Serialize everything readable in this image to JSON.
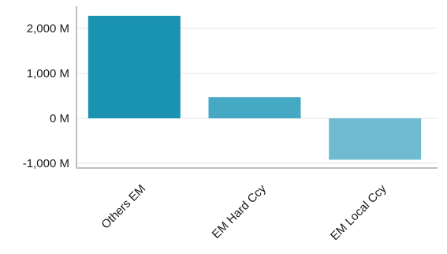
{
  "chart_data": {
    "type": "bar",
    "categories": [
      "Others EM",
      "EM Hard Ccy",
      "EM Local Ccy"
    ],
    "values": [
      2280,
      470,
      -920
    ],
    "value_unit": "M",
    "ylim": [
      -1000,
      2400
    ],
    "yticks": [
      -1000,
      0,
      1000,
      2000
    ],
    "ytick_labels": [
      "-1,000 M",
      "0 M",
      "1,000 M",
      "2,000 M"
    ],
    "grid": true,
    "legend": "none",
    "title": "",
    "xlabel": "",
    "ylabel": "",
    "colors": [
      "#1a93b0",
      "#46a9c4",
      "#6ebbd1"
    ],
    "grid_color": "#e6e6e6",
    "axis_color": "#bfbfbf"
  }
}
